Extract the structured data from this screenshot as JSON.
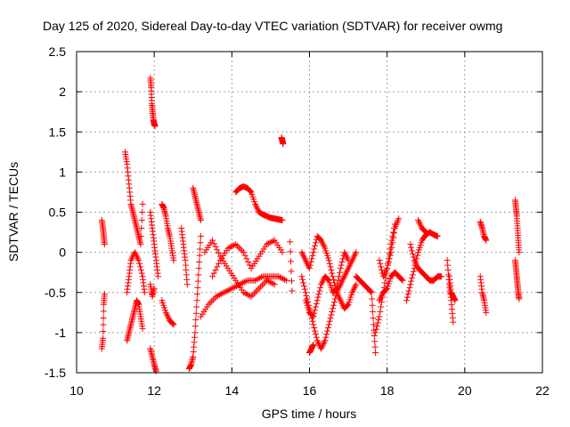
{
  "chart_data": {
    "type": "scatter",
    "title": "Day 125 of 2020, Sidereal Day-to-day VTEC variation (SDTVAR) for receiver owmg",
    "xlabel": "GPS time / hours",
    "ylabel": "SDTVAR / TECUs",
    "xlim": [
      10,
      22
    ],
    "ylim": [
      -1.5,
      2.5
    ],
    "xticks": [
      10,
      12,
      14,
      16,
      18,
      20,
      22
    ],
    "xtick_labels": [
      "10",
      "12",
      "14",
      "16",
      "18",
      "20",
      "22"
    ],
    "yticks": [
      -1.5,
      -1,
      -0.5,
      0,
      0.5,
      1,
      1.5,
      2,
      2.5
    ],
    "ytick_labels": [
      "-1.5",
      "-1",
      "-0.5",
      "0",
      "0.5",
      "1",
      "1.5",
      "2",
      "2.5"
    ],
    "grid": true,
    "marker": "+",
    "color": "#ff0000",
    "series": [
      {
        "name": "SDTVAR",
        "segments": [
          {
            "x": [
              10.65,
              10.68,
              10.7,
              10.72
            ],
            "y": [
              -1.2,
              -1.07,
              -0.65,
              -0.52
            ]
          },
          {
            "x": [
              10.65,
              10.68,
              10.7,
              10.72
            ],
            "y": [
              0.4,
              0.3,
              0.2,
              0.1
            ]
          },
          {
            "x": [
              11.25,
              11.3,
              11.35,
              11.4,
              11.45,
              11.5,
              11.55,
              11.6,
              11.65,
              11.7
            ],
            "y": [
              1.25,
              1.1,
              0.85,
              0.6,
              0.5,
              0.4,
              0.3,
              0.2,
              0.1,
              0.6
            ]
          },
          {
            "x": [
              11.3,
              11.35,
              11.4,
              11.5,
              11.6,
              11.7,
              11.75
            ],
            "y": [
              -0.5,
              -0.3,
              -0.1,
              0.0,
              -0.1,
              -0.3,
              -0.5
            ]
          },
          {
            "x": [
              11.3,
              11.35,
              11.4,
              11.45,
              11.5,
              11.55,
              11.6,
              11.65,
              11.7
            ],
            "y": [
              -1.1,
              -1.0,
              -0.9,
              -0.8,
              -0.7,
              -0.6,
              -0.65,
              -0.8,
              -0.95
            ]
          },
          {
            "x": [
              11.9,
              11.92,
              11.94,
              11.96,
              11.98,
              12.0,
              12.02
            ],
            "y": [
              2.17,
              2.05,
              1.85,
              1.75,
              1.65,
              1.6,
              1.57
            ]
          },
          {
            "x": [
              11.9,
              11.95,
              12.0,
              12.05,
              12.1
            ],
            "y": [
              0.5,
              0.3,
              0.1,
              -0.1,
              -0.3
            ]
          },
          {
            "x": [
              11.9,
              11.95,
              12.0,
              12.05
            ],
            "y": [
              -1.2,
              -1.3,
              -1.4,
              -1.48
            ]
          },
          {
            "x": [
              11.9,
              11.95,
              12.0
            ],
            "y": [
              -0.4,
              -0.55,
              -0.45
            ]
          },
          {
            "x": [
              12.2,
              12.25,
              12.3,
              12.35,
              12.4,
              12.45,
              12.5
            ],
            "y": [
              0.6,
              0.55,
              0.45,
              0.3,
              0.2,
              0.05,
              -0.1
            ]
          },
          {
            "x": [
              12.2,
              12.3,
              12.4,
              12.5
            ],
            "y": [
              -0.6,
              -0.75,
              -0.85,
              -0.9
            ]
          },
          {
            "x": [
              12.7,
              12.75,
              12.8,
              12.85
            ],
            "y": [
              0.3,
              0.1,
              -0.1,
              -0.4
            ]
          },
          {
            "x": [
              12.9,
              12.95,
              13.0,
              13.05,
              13.1,
              13.15,
              13.2
            ],
            "y": [
              -1.45,
              -1.4,
              -1.3,
              -1.0,
              -0.6,
              -0.2,
              0.2
            ]
          },
          {
            "x": [
              13.0,
              13.05,
              13.1,
              13.15,
              13.2
            ],
            "y": [
              0.8,
              0.7,
              0.6,
              0.5,
              0.4
            ]
          },
          {
            "x": [
              13.2,
              13.4,
              13.6,
              13.8,
              14.0,
              14.2,
              14.4,
              14.6,
              14.8,
              15.0,
              15.2,
              15.4
            ],
            "y": [
              -0.8,
              -0.65,
              -0.55,
              -0.5,
              -0.45,
              -0.4,
              -0.35,
              -0.35,
              -0.3,
              -0.3,
              -0.3,
              -0.35
            ]
          },
          {
            "x": [
              13.3,
              13.5,
              13.7,
              13.9,
              14.1,
              14.3,
              14.5,
              14.7,
              14.9,
              15.1
            ],
            "y": [
              0.0,
              0.15,
              -0.05,
              -0.2,
              -0.35,
              -0.5,
              -0.55,
              -0.45,
              -0.35,
              -0.4
            ]
          },
          {
            "x": [
              13.5,
              13.7,
              13.9,
              14.1,
              14.3,
              14.5,
              14.7,
              14.9,
              15.1,
              15.3
            ],
            "y": [
              -0.3,
              -0.1,
              0.05,
              0.1,
              0.0,
              -0.2,
              -0.05,
              0.1,
              0.15,
              0.0
            ]
          },
          {
            "x": [
              14.1,
              14.2,
              14.3,
              14.4,
              14.5,
              14.6,
              14.7,
              14.8,
              14.9,
              15.0,
              15.1,
              15.2,
              15.3
            ],
            "y": [
              0.75,
              0.8,
              0.82,
              0.8,
              0.75,
              0.6,
              0.5,
              0.47,
              0.45,
              0.43,
              0.42,
              0.41,
              0.4
            ]
          },
          {
            "x": [
              15.28,
              15.3,
              15.32
            ],
            "y": [
              1.43,
              1.39,
              1.35
            ]
          },
          {
            "x": [
              15.5,
              15.55
            ],
            "y": [
              0.13,
              -0.48
            ]
          },
          {
            "x": [
              15.8,
              15.9,
              16.0,
              16.1,
              16.2,
              16.3,
              16.4,
              16.5,
              16.6,
              16.7,
              16.8,
              16.9,
              17.0,
              17.1,
              17.2
            ],
            "y": [
              -0.3,
              -0.5,
              -0.7,
              -0.9,
              -1.1,
              -1.2,
              -1.1,
              -0.9,
              -0.7,
              -0.5,
              -0.4,
              -0.3,
              -0.2,
              -0.1,
              0.0
            ]
          },
          {
            "x": [
              15.8,
              15.9,
              16.0,
              16.1,
              16.2,
              16.3,
              16.4,
              16.5,
              16.6,
              16.7,
              16.8,
              16.9,
              17.0,
              17.1,
              17.2
            ],
            "y": [
              0.0,
              -0.1,
              -0.2,
              0.0,
              0.2,
              0.15,
              0.05,
              -0.1,
              -0.3,
              -0.5,
              -0.6,
              -0.7,
              -0.65,
              -0.5,
              -0.4
            ]
          },
          {
            "x": [
              15.9,
              16.0,
              16.1,
              16.2,
              16.3,
              16.4,
              16.5,
              16.6,
              16.7,
              16.8,
              16.9,
              17.0
            ],
            "y": [
              -0.6,
              -0.75,
              -0.8,
              -0.6,
              -0.4,
              -0.3,
              -0.35,
              -0.5,
              -0.45,
              -0.2,
              0.0,
              -0.1
            ]
          },
          {
            "x": [
              16.0,
              16.05,
              16.1
            ],
            "y": [
              -1.25,
              -1.2,
              -1.15
            ]
          },
          {
            "x": [
              17.2,
              17.3,
              17.4,
              17.5,
              17.6,
              17.65,
              17.7
            ],
            "y": [
              -0.3,
              -0.35,
              -0.4,
              -0.45,
              -0.5,
              -0.9,
              -1.25
            ]
          },
          {
            "x": [
              17.7,
              17.8,
              17.9,
              18.0,
              18.1,
              18.2
            ],
            "y": [
              -1.0,
              -0.8,
              -0.5,
              -0.2,
              0.1,
              0.35
            ]
          },
          {
            "x": [
              17.8,
              17.9,
              18.0,
              18.1,
              18.2,
              18.3
            ],
            "y": [
              -0.1,
              -0.3,
              -0.2,
              0.0,
              0.3,
              0.42
            ]
          },
          {
            "x": [
              17.8,
              17.9,
              18.0,
              18.1,
              18.2,
              18.3,
              18.4
            ],
            "y": [
              -0.6,
              -0.5,
              -0.45,
              -0.3,
              -0.25,
              -0.3,
              -0.35
            ]
          },
          {
            "x": [
              18.5,
              18.6,
              18.7,
              18.8,
              18.9,
              19.0,
              19.1,
              19.2,
              19.3
            ],
            "y": [
              -0.6,
              -0.4,
              -0.2,
              0.0,
              0.15,
              0.22,
              0.25,
              0.22,
              0.2
            ]
          },
          {
            "x": [
              18.6,
              18.7,
              18.8,
              18.9,
              19.0,
              19.1,
              19.2,
              19.3,
              19.4
            ],
            "y": [
              0.1,
              -0.1,
              -0.2,
              -0.25,
              -0.3,
              -0.35,
              -0.35,
              -0.3,
              -0.3
            ]
          },
          {
            "x": [
              18.8,
              18.9,
              19.0
            ],
            "y": [
              0.4,
              0.3,
              0.25
            ]
          },
          {
            "x": [
              19.55,
              19.6,
              19.65,
              19.7
            ],
            "y": [
              -0.1,
              -0.4,
              -0.6,
              -0.87
            ]
          },
          {
            "x": [
              19.6,
              19.65,
              19.7,
              19.75
            ],
            "y": [
              -0.3,
              -0.5,
              -0.55,
              -0.6
            ]
          },
          {
            "x": [
              20.4,
              20.45,
              20.5,
              20.55
            ],
            "y": [
              0.38,
              0.3,
              0.2,
              0.15
            ]
          },
          {
            "x": [
              20.4,
              20.45,
              20.5,
              20.55
            ],
            "y": [
              -0.3,
              -0.5,
              -0.6,
              -0.75
            ]
          },
          {
            "x": [
              21.3,
              21.32,
              21.34,
              21.36,
              21.38,
              21.4
            ],
            "y": [
              0.65,
              0.55,
              0.45,
              0.3,
              0.15,
              0.0
            ]
          },
          {
            "x": [
              21.3,
              21.32,
              21.34,
              21.36,
              21.38,
              21.4
            ],
            "y": [
              -0.1,
              -0.2,
              -0.3,
              -0.4,
              -0.5,
              -0.58
            ]
          }
        ]
      }
    ]
  }
}
